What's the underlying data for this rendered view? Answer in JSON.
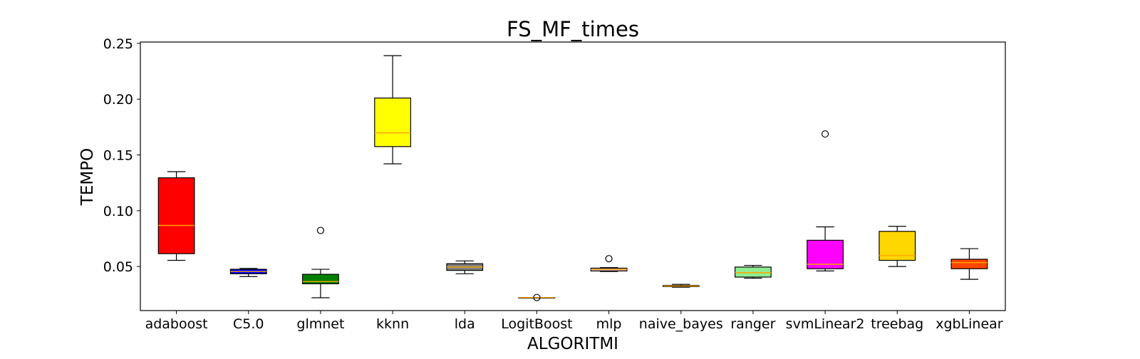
{
  "chart_data": {
    "type": "box",
    "title": "FS_MF_times",
    "xlabel": "ALGORITMI",
    "ylabel": "TEMPO",
    "ylim": [
      0.0105,
      0.2512
    ],
    "yticks": [
      "0.05",
      "0.10",
      "0.15",
      "0.20",
      "0.25"
    ],
    "ytick_values": [
      0.05,
      0.1,
      0.15,
      0.2,
      0.25
    ],
    "grid": false,
    "median_color": "#FFA500",
    "categories": [
      "adaboost",
      "C5.0",
      "glmnet",
      "kknn",
      "lda",
      "LogitBoost",
      "mlp",
      "naive_bayes",
      "ranger",
      "svmLinear2",
      "treebag",
      "xgbLinear"
    ],
    "boxes": [
      {
        "name": "adaboost",
        "color": "#FF0000",
        "whislo": 0.0555,
        "q1": 0.0615,
        "med": 0.0868,
        "q3": 0.1295,
        "whishi": 0.135,
        "fliers": []
      },
      {
        "name": "C5.0",
        "color": "#0000FF",
        "whislo": 0.041,
        "q1": 0.0435,
        "med": 0.0455,
        "q3": 0.0475,
        "whishi": 0.0483,
        "fliers": []
      },
      {
        "name": "glmnet",
        "color": "#008000",
        "whislo": 0.022,
        "q1": 0.0345,
        "med": 0.0365,
        "q3": 0.043,
        "whishi": 0.0475,
        "fliers": [
          0.0823
        ]
      },
      {
        "name": "kknn",
        "color": "#FFFF00",
        "whislo": 0.142,
        "q1": 0.1575,
        "med": 0.1698,
        "q3": 0.201,
        "whishi": 0.239,
        "fliers": []
      },
      {
        "name": "lda",
        "color": "#808080",
        "whislo": 0.0435,
        "q1": 0.0465,
        "med": 0.0495,
        "q3": 0.0525,
        "whishi": 0.055,
        "fliers": []
      },
      {
        "name": "LogitBoost",
        "color": "#A52A2A",
        "whislo": 0.0222,
        "q1": 0.0222,
        "med": 0.0222,
        "q3": 0.0222,
        "whishi": 0.0222,
        "fliers": [
          0.0222
        ]
      },
      {
        "name": "mlp",
        "color": "#FFC0CB",
        "whislo": 0.0455,
        "q1": 0.046,
        "med": 0.0475,
        "q3": 0.0485,
        "whishi": 0.049,
        "fliers": [
          0.057
        ]
      },
      {
        "name": "naive_bayes",
        "color": "#808000",
        "whislo": 0.0315,
        "q1": 0.032,
        "med": 0.0325,
        "q3": 0.033,
        "whishi": 0.034,
        "fliers": []
      },
      {
        "name": "ranger",
        "color": "#90EE90",
        "whislo": 0.0395,
        "q1": 0.0405,
        "med": 0.0445,
        "q3": 0.0495,
        "whishi": 0.051,
        "fliers": []
      },
      {
        "name": "svmLinear2",
        "color": "#FF00FF",
        "whislo": 0.046,
        "q1": 0.048,
        "med": 0.052,
        "q3": 0.0735,
        "whishi": 0.0855,
        "fliers": [
          0.1688
        ]
      },
      {
        "name": "treebag",
        "color": "#FFD700",
        "whislo": 0.05,
        "q1": 0.0555,
        "med": 0.0598,
        "q3": 0.0815,
        "whishi": 0.086,
        "fliers": []
      },
      {
        "name": "xgbLinear",
        "color": "#FF4500",
        "whislo": 0.0385,
        "q1": 0.048,
        "med": 0.0535,
        "q3": 0.0565,
        "whishi": 0.066,
        "fliers": []
      }
    ]
  }
}
